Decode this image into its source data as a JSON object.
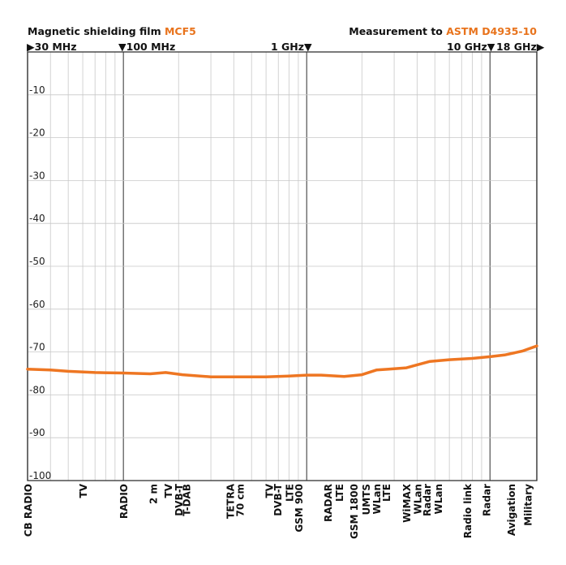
{
  "header": {
    "left_text": "Magnetic shielding film ",
    "left_accent": "MCF5",
    "right_text": "Measurement to ",
    "right_accent": "ASTM D4935-10"
  },
  "colors": {
    "accent": "#e8731c",
    "line": "#ee7622",
    "grid": "#c8c8c8",
    "major_grid": "#555555"
  },
  "freq_markers": [
    {
      "label": "30 MHz",
      "value_hz": 30000000,
      "arrow": "right"
    },
    {
      "label": "100 MHz",
      "value_hz": 100000000,
      "arrow": "down-left"
    },
    {
      "label": "1 GHz",
      "value_hz": 1000000000,
      "arrow": "down-right"
    },
    {
      "label": "10 GHz",
      "value_hz": 10000000000,
      "arrow": "down-right"
    },
    {
      "label": "18 GHz",
      "value_hz": 18000000000,
      "arrow": "right"
    }
  ],
  "chart_data": {
    "type": "line",
    "x_scale": "log",
    "xlim_hz": [
      30000000,
      18000000000
    ],
    "ylim": [
      -100,
      0
    ],
    "yticks": [
      -10,
      -20,
      -30,
      -40,
      -50,
      -60,
      -70,
      -80,
      -90,
      -100
    ],
    "grid": true,
    "series": [
      {
        "x_hz": [
          30000000,
          40000000,
          50000000,
          70000000,
          100000000,
          140000000,
          170000000,
          210000000,
          300000000,
          400000000,
          600000000,
          800000000,
          1000000000,
          1200000000,
          1600000000,
          2000000000,
          2400000000,
          2800000000,
          3500000000,
          4700000000,
          6000000000,
          8000000000,
          10000000000,
          12000000000,
          15000000000,
          18000000000
        ],
        "y": [
          -74,
          -74.2,
          -74.5,
          -74.8,
          -74.9,
          -75.1,
          -74.8,
          -75.3,
          -75.8,
          -75.8,
          -75.8,
          -75.6,
          -75.4,
          -75.4,
          -75.7,
          -75.3,
          -74.2,
          -74.0,
          -73.7,
          -72.2,
          -71.8,
          -71.5,
          -71.1,
          -70.7,
          -69.8,
          -68.6
        ]
      }
    ],
    "bands": [
      {
        "label": "CB RADIO",
        "x_hz": 30000000
      },
      {
        "label": "TV",
        "x_hz": 60000000
      },
      {
        "label": "RADIO",
        "x_hz": 100000000
      },
      {
        "label": "2 m",
        "x_hz": 145000000
      },
      {
        "label": "TV",
        "x_hz": 175000000
      },
      {
        "label": "DVB-T",
        "x_hz": 200000000
      },
      {
        "label": "T-DAB",
        "x_hz": 220000000
      },
      {
        "label": "TETRA",
        "x_hz": 380000000
      },
      {
        "label": "70 cm",
        "x_hz": 430000000
      },
      {
        "label": "TV",
        "x_hz": 620000000
      },
      {
        "label": "DVB-T",
        "x_hz": 690000000
      },
      {
        "label": "LTE",
        "x_hz": 800000000
      },
      {
        "label": "GSM 900",
        "x_hz": 900000000
      },
      {
        "label": "RADAR",
        "x_hz": 1300000000
      },
      {
        "label": "LTE",
        "x_hz": 1500000000
      },
      {
        "label": "GSM 1800",
        "x_hz": 1800000000
      },
      {
        "label": "UMTS",
        "x_hz": 2100000000
      },
      {
        "label": "WLan",
        "x_hz": 2400000000
      },
      {
        "label": "LTE",
        "x_hz": 2700000000
      },
      {
        "label": "WiMAX",
        "x_hz": 3500000000
      },
      {
        "label": "WLan",
        "x_hz": 4000000000
      },
      {
        "label": "Radar",
        "x_hz": 4500000000
      },
      {
        "label": "WLan",
        "x_hz": 5200000000
      },
      {
        "label": "Radio link",
        "x_hz": 7500000000
      },
      {
        "label": "Radar",
        "x_hz": 9500000000
      },
      {
        "label": "Avigation",
        "x_hz": 13000000000
      },
      {
        "label": "Military",
        "x_hz": 16000000000
      }
    ]
  }
}
